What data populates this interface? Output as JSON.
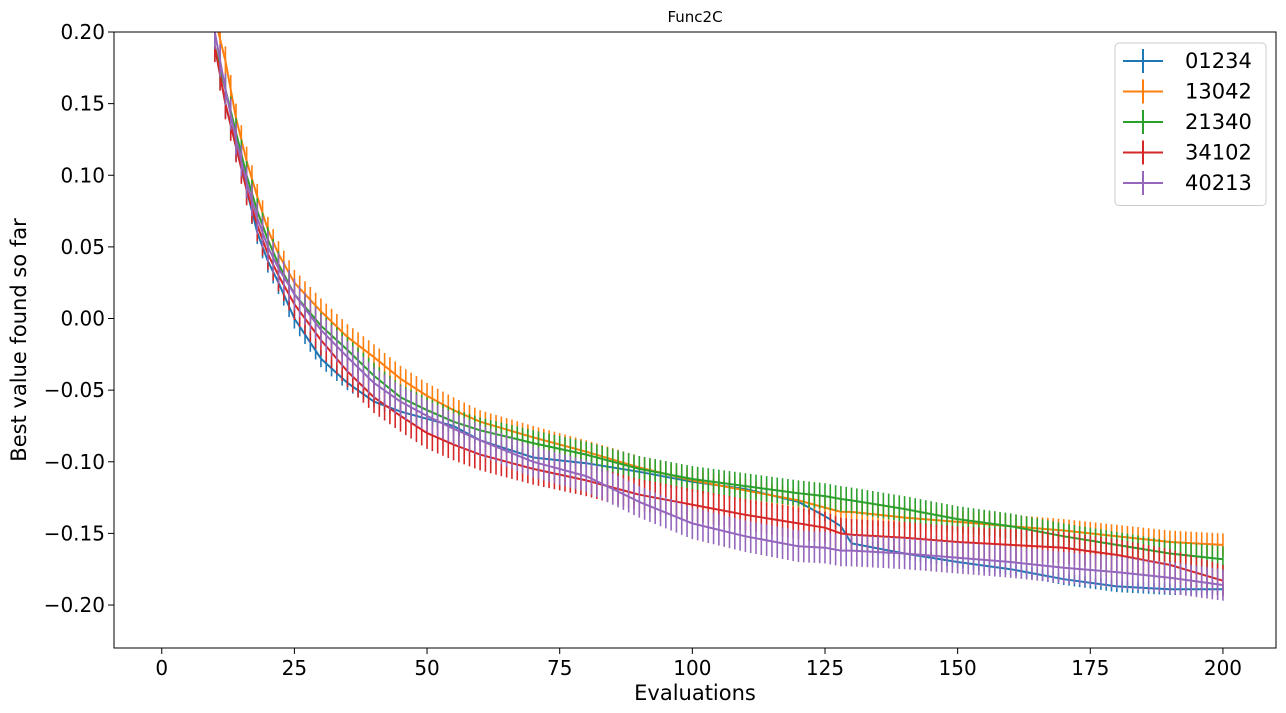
{
  "chart_data": {
    "type": "line",
    "title": "Func2C",
    "xlabel": "Evaluations",
    "ylabel": "Best value found so far",
    "xlim": [
      -9,
      210
    ],
    "ylim": [
      -0.23,
      0.2
    ],
    "xticks": [
      0,
      25,
      50,
      75,
      100,
      125,
      150,
      175,
      200
    ],
    "xtick_labels": [
      "0",
      "25",
      "50",
      "75",
      "100",
      "125",
      "150",
      "175",
      "200"
    ],
    "yticks": [
      -0.2,
      -0.15,
      -0.1,
      -0.05,
      0.0,
      0.05,
      0.1,
      0.15,
      0.2
    ],
    "ytick_labels": [
      "−0.20",
      "−0.15",
      "−0.10",
      "−0.05",
      "0.00",
      "0.05",
      "0.10",
      "0.15",
      "0.20"
    ],
    "legend_position": "top-right",
    "error_bars": true,
    "x": [
      10,
      12,
      14,
      16,
      18,
      20,
      22,
      25,
      30,
      35,
      40,
      45,
      50,
      55,
      60,
      70,
      80,
      90,
      100,
      110,
      120,
      125,
      128,
      130,
      140,
      150,
      160,
      170,
      180,
      190,
      200
    ],
    "series": [
      {
        "name": "01234",
        "color": "#1f77b4",
        "values": [
          0.19,
          0.15,
          0.12,
          0.09,
          0.06,
          0.04,
          0.025,
          0.0,
          -0.028,
          -0.045,
          -0.058,
          -0.065,
          -0.07,
          -0.075,
          -0.085,
          -0.097,
          -0.101,
          -0.107,
          -0.114,
          -0.119,
          -0.128,
          -0.138,
          -0.145,
          -0.157,
          -0.164,
          -0.17,
          -0.175,
          -0.182,
          -0.187,
          -0.189,
          -0.189
        ],
        "errors": [
          0.01,
          0.01,
          0.01,
          0.01,
          0.008,
          0.008,
          0.008,
          0.007,
          0.006,
          0.005,
          0.004,
          0.004,
          0.004,
          0.004,
          0.004,
          0.004,
          0.004,
          0.004,
          0.004,
          0.004,
          0.004,
          0.004,
          0.004,
          0.004,
          0.004,
          0.004,
          0.004,
          0.004,
          0.004,
          0.004,
          0.004
        ]
      },
      {
        "name": "13042",
        "color": "#ff7f0e",
        "values": [
          0.21,
          0.18,
          0.14,
          0.11,
          0.085,
          0.062,
          0.045,
          0.025,
          0.005,
          -0.013,
          -0.027,
          -0.042,
          -0.054,
          -0.064,
          -0.072,
          -0.083,
          -0.093,
          -0.104,
          -0.113,
          -0.12,
          -0.127,
          -0.132,
          -0.135,
          -0.135,
          -0.139,
          -0.142,
          -0.145,
          -0.148,
          -0.152,
          -0.156,
          -0.158
        ],
        "errors": [
          0.012,
          0.01,
          0.01,
          0.01,
          0.009,
          0.009,
          0.009,
          0.009,
          0.009,
          0.009,
          0.009,
          0.009,
          0.009,
          0.009,
          0.008,
          0.008,
          0.008,
          0.008,
          0.008,
          0.008,
          0.008,
          0.008,
          0.008,
          0.008,
          0.008,
          0.008,
          0.008,
          0.008,
          0.008,
          0.008,
          0.008
        ]
      },
      {
        "name": "21340",
        "color": "#2ca02c",
        "values": [
          0.19,
          0.16,
          0.13,
          0.1,
          0.075,
          0.055,
          0.038,
          0.017,
          -0.005,
          -0.022,
          -0.04,
          -0.055,
          -0.064,
          -0.072,
          -0.078,
          -0.087,
          -0.095,
          -0.105,
          -0.112,
          -0.117,
          -0.122,
          -0.124,
          -0.126,
          -0.127,
          -0.133,
          -0.14,
          -0.145,
          -0.152,
          -0.158,
          -0.164,
          -0.168
        ],
        "errors": [
          0.01,
          0.01,
          0.01,
          0.01,
          0.009,
          0.009,
          0.009,
          0.009,
          0.009,
          0.009,
          0.009,
          0.009,
          0.009,
          0.009,
          0.009,
          0.009,
          0.009,
          0.009,
          0.009,
          0.009,
          0.009,
          0.009,
          0.009,
          0.009,
          0.009,
          0.009,
          0.009,
          0.009,
          0.009,
          0.009,
          0.009
        ]
      },
      {
        "name": "34102",
        "color": "#d62728",
        "values": [
          0.19,
          0.15,
          0.12,
          0.09,
          0.065,
          0.045,
          0.03,
          0.01,
          -0.015,
          -0.037,
          -0.055,
          -0.068,
          -0.08,
          -0.088,
          -0.095,
          -0.105,
          -0.113,
          -0.123,
          -0.13,
          -0.137,
          -0.143,
          -0.146,
          -0.15,
          -0.151,
          -0.153,
          -0.156,
          -0.158,
          -0.16,
          -0.165,
          -0.172,
          -0.183
        ],
        "errors": [
          0.011,
          0.011,
          0.011,
          0.011,
          0.011,
          0.011,
          0.011,
          0.011,
          0.011,
          0.011,
          0.011,
          0.011,
          0.011,
          0.011,
          0.011,
          0.011,
          0.011,
          0.011,
          0.011,
          0.011,
          0.011,
          0.011,
          0.011,
          0.011,
          0.011,
          0.011,
          0.011,
          0.011,
          0.011,
          0.011,
          0.011
        ]
      },
      {
        "name": "40213",
        "color": "#9467bd",
        "values": [
          0.2,
          0.16,
          0.125,
          0.095,
          0.07,
          0.05,
          0.035,
          0.017,
          -0.008,
          -0.027,
          -0.045,
          -0.058,
          -0.068,
          -0.077,
          -0.085,
          -0.1,
          -0.11,
          -0.128,
          -0.143,
          -0.152,
          -0.159,
          -0.16,
          -0.162,
          -0.162,
          -0.164,
          -0.167,
          -0.17,
          -0.174,
          -0.177,
          -0.181,
          -0.186
        ],
        "errors": [
          0.012,
          0.011,
          0.011,
          0.011,
          0.011,
          0.011,
          0.011,
          0.011,
          0.011,
          0.011,
          0.011,
          0.011,
          0.011,
          0.011,
          0.011,
          0.011,
          0.011,
          0.011,
          0.011,
          0.011,
          0.011,
          0.011,
          0.011,
          0.011,
          0.011,
          0.011,
          0.011,
          0.011,
          0.011,
          0.011,
          0.011
        ]
      }
    ]
  }
}
